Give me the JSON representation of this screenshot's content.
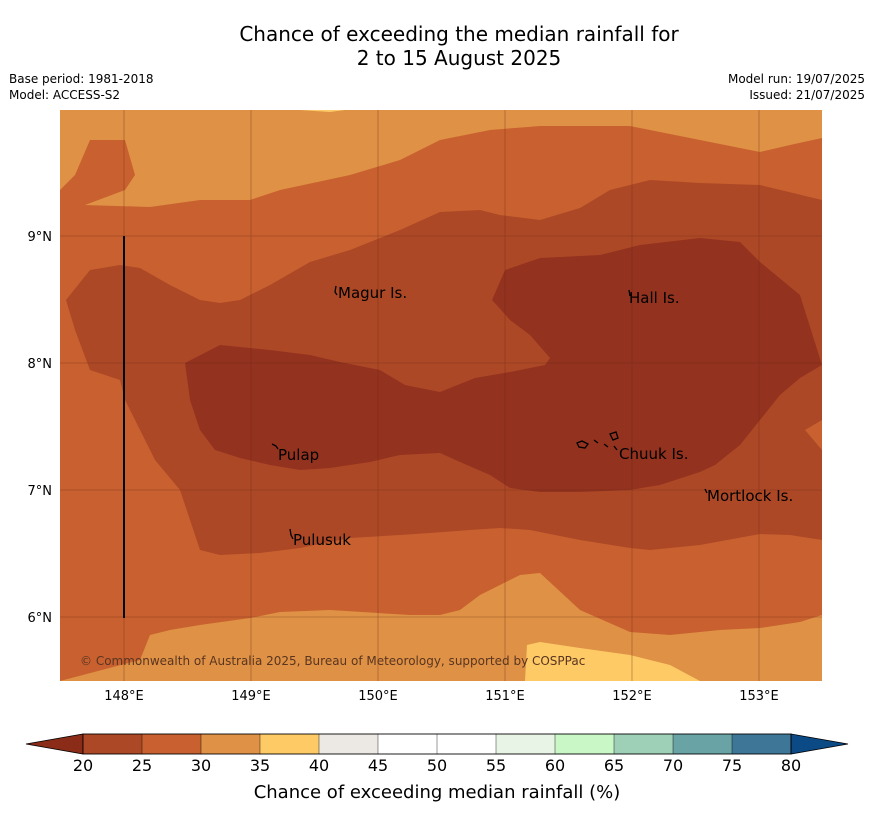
{
  "title_line1": "Chance of exceeding the median rainfall for",
  "title_line2": "2 to 15 August 2025",
  "base_period": "Base period: 1981-2018",
  "model": "Model: ACCESS-S2",
  "model_run": "Model run: 19/07/2025",
  "issued": "Issued: 21/07/2025",
  "lat_labels": [
    "9°N",
    "8°N",
    "7°N",
    "6°N"
  ],
  "lon_labels": [
    "148°E",
    "149°E",
    "150°E",
    "151°E",
    "152°E",
    "153°E"
  ],
  "places": {
    "magur": "Magur Is.",
    "hall": "Hall Is.",
    "pulap": "Pulap",
    "chuuk": "Chuuk Is.",
    "mortlock": "Mortlock Is.",
    "pulusuk": "Pulusuk"
  },
  "copyright": "© Commonwealth of Australia 2025, Bureau of Meteorology, supported by COSPPac",
  "colorbar": {
    "label": "Chance of exceeding median rainfall (%)",
    "ticks": [
      "20",
      "25",
      "30",
      "35",
      "40",
      "45",
      "50",
      "55",
      "60",
      "65",
      "70",
      "75",
      "80"
    ],
    "colors": [
      "#ad4826",
      "#c8612f",
      "#df9245",
      "#fdca66",
      "#ece8e3",
      "#ffffff",
      "#ffffff",
      "#e8f4e5",
      "#c9f7c6",
      "#9dd0b6",
      "#6aa3a6",
      "#3e7698"
    ],
    "under_color": "#8b2c18",
    "over_color": "#0c4a86"
  },
  "map_colors": {
    "lt_20": "#93321f",
    "20_25": "#ad4826",
    "25_30": "#c8612f",
    "30_35": "#df9245",
    "35_40": "#fdca66"
  }
}
